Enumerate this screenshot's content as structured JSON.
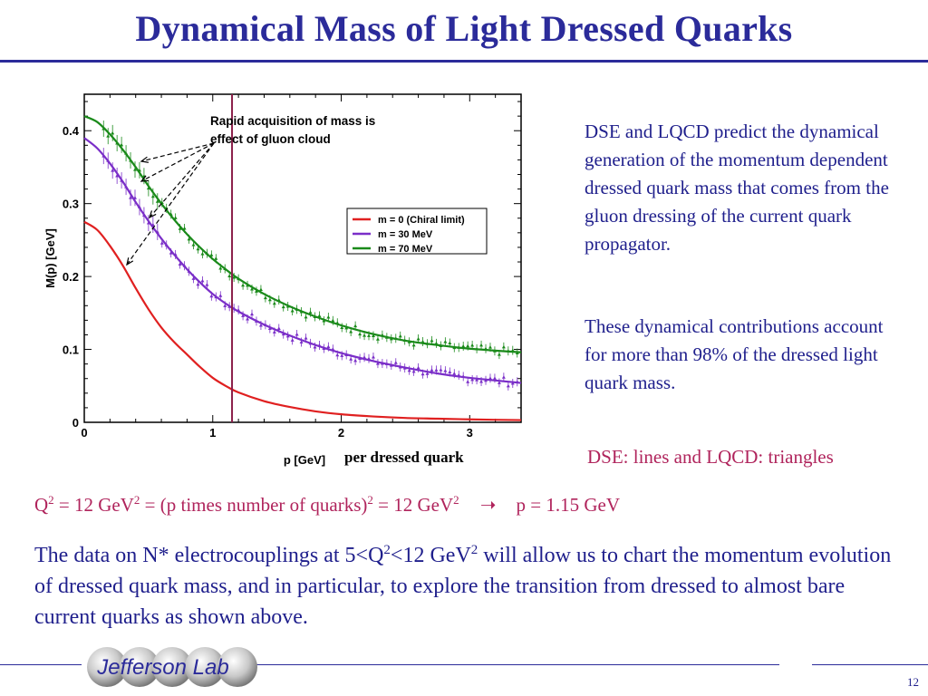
{
  "slide": {
    "title": "Dynamical Mass of Light Dressed Quarks",
    "page_number": "12",
    "logo_text": "Jefferson Lab"
  },
  "right_text": {
    "para1": "DSE and LQCD predict  the dynamical generation of the momentum dependent dressed quark mass that comes from the gluon dressing of the current quark propagator.",
    "para2": "These dynamical contributions account for more than 98% of the dressed light quark mass.",
    "caption": "DSE: lines and LQCD: triangles"
  },
  "formula": {
    "q": "Q",
    "sq": "2",
    "part1": " = 12 GeV",
    "part2": " = (p times number of quarks)",
    "part3": " = 12 GeV",
    "arrow": "➝",
    "result": "p = 1.15 GeV"
  },
  "bottom_text": {
    "part1": "The data on N* electrocouplings at 5<Q",
    "part2": "<12 GeV",
    "part3": " will allow us to chart the momentum evolution of dressed quark mass, and in particular, to explore the transition from dressed to almost bare current quarks as shown above."
  },
  "colors": {
    "title": "#2b2b9a",
    "accent_pink": "#b0245c",
    "series_red": "#e02020",
    "series_purple": "#7a2ec8",
    "series_green": "#1a8a1a",
    "vline": "#8b1f4a"
  },
  "chart_data": {
    "type": "line",
    "xlabel": "p [GeV]",
    "xlabel_suffix": "per dressed quark",
    "ylabel": "M(p) [GeV]",
    "xlim": [
      0,
      3.4
    ],
    "ylim": [
      0,
      0.45
    ],
    "xticks": [
      0,
      1,
      2,
      3
    ],
    "yticks": [
      0,
      0.1,
      0.2,
      0.3,
      0.4
    ],
    "vertical_line_x": 1.15,
    "annotation": [
      "Rapid acquisition of mass is",
      "effect of gluon cloud"
    ],
    "legend_position": "right-middle",
    "series": [
      {
        "name": "m = 0 (Chiral limit)",
        "color": "#e02020",
        "x": [
          0,
          0.1,
          0.2,
          0.3,
          0.4,
          0.5,
          0.6,
          0.7,
          0.8,
          0.9,
          1.0,
          1.1,
          1.2,
          1.4,
          1.6,
          1.8,
          2.0,
          2.25,
          2.5,
          2.75,
          3.0,
          3.4
        ],
        "y": [
          0.275,
          0.264,
          0.242,
          0.215,
          0.184,
          0.155,
          0.13,
          0.11,
          0.093,
          0.076,
          0.061,
          0.05,
          0.041,
          0.029,
          0.021,
          0.015,
          0.011,
          0.008,
          0.006,
          0.005,
          0.004,
          0.003
        ]
      },
      {
        "name": "m = 30 MeV",
        "color": "#7a2ec8",
        "x": [
          0,
          0.1,
          0.2,
          0.3,
          0.4,
          0.5,
          0.6,
          0.7,
          0.8,
          0.9,
          1.0,
          1.1,
          1.2,
          1.4,
          1.6,
          1.8,
          2.0,
          2.25,
          2.5,
          2.75,
          3.0,
          3.4
        ],
        "y": [
          0.39,
          0.376,
          0.355,
          0.33,
          0.302,
          0.276,
          0.252,
          0.23,
          0.21,
          0.192,
          0.176,
          0.163,
          0.152,
          0.134,
          0.119,
          0.106,
          0.095,
          0.084,
          0.075,
          0.067,
          0.061,
          0.054
        ]
      },
      {
        "name": "m = 70 MeV",
        "color": "#1a8a1a",
        "x": [
          0,
          0.1,
          0.2,
          0.3,
          0.4,
          0.5,
          0.6,
          0.7,
          0.8,
          0.9,
          1.0,
          1.1,
          1.2,
          1.4,
          1.6,
          1.8,
          2.0,
          2.25,
          2.5,
          2.75,
          3.0,
          3.4
        ],
        "y": [
          0.42,
          0.412,
          0.395,
          0.374,
          0.35,
          0.324,
          0.3,
          0.278,
          0.258,
          0.24,
          0.224,
          0.21,
          0.197,
          0.176,
          0.159,
          0.145,
          0.133,
          0.121,
          0.112,
          0.106,
          0.101,
          0.096
        ]
      }
    ]
  }
}
